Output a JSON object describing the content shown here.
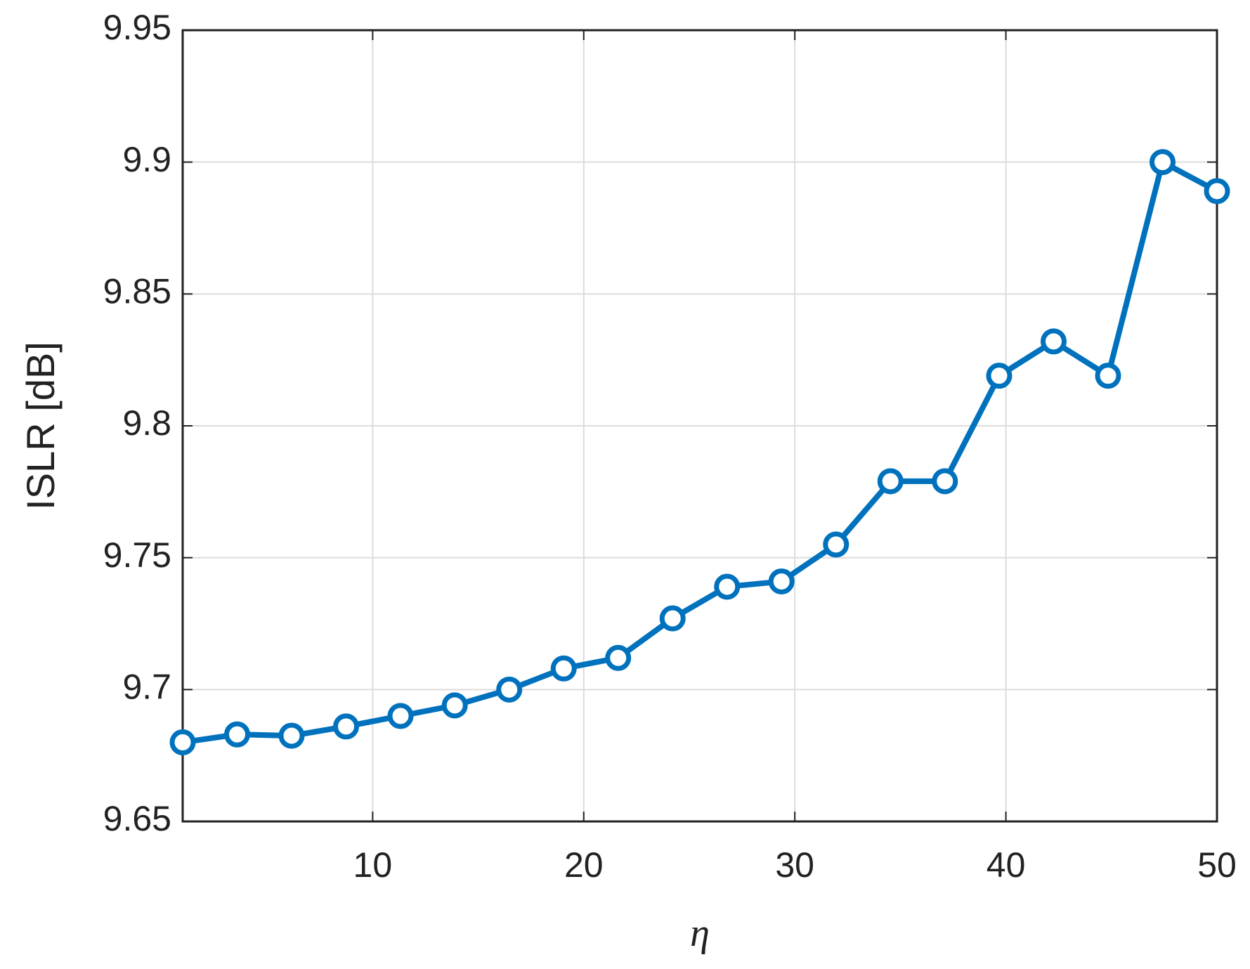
{
  "chart_data": {
    "type": "line",
    "x_label": "η",
    "y_label": "ISLR [dB]",
    "x": [
      1,
      3.58,
      6.16,
      8.74,
      11.32,
      13.89,
      16.47,
      19.05,
      21.63,
      24.21,
      26.79,
      29.37,
      31.95,
      34.53,
      37.11,
      39.68,
      42.26,
      44.84,
      47.42,
      50
    ],
    "series": [
      {
        "name": "ISLR",
        "color": "#0072bd",
        "values": [
          9.68,
          9.683,
          9.6825,
          9.686,
          9.69,
          9.694,
          9.7,
          9.708,
          9.712,
          9.727,
          9.739,
          9.741,
          9.755,
          9.779,
          9.779,
          9.819,
          9.832,
          9.819,
          9.9,
          9.889
        ]
      }
    ],
    "xlim": [
      1,
      50
    ],
    "xticks": [
      10,
      20,
      30,
      40,
      50
    ],
    "ylim": [
      9.65,
      9.95
    ],
    "yticks": [
      9.65,
      9.7,
      9.75,
      9.8,
      9.85,
      9.9,
      9.95
    ],
    "grid": true
  }
}
